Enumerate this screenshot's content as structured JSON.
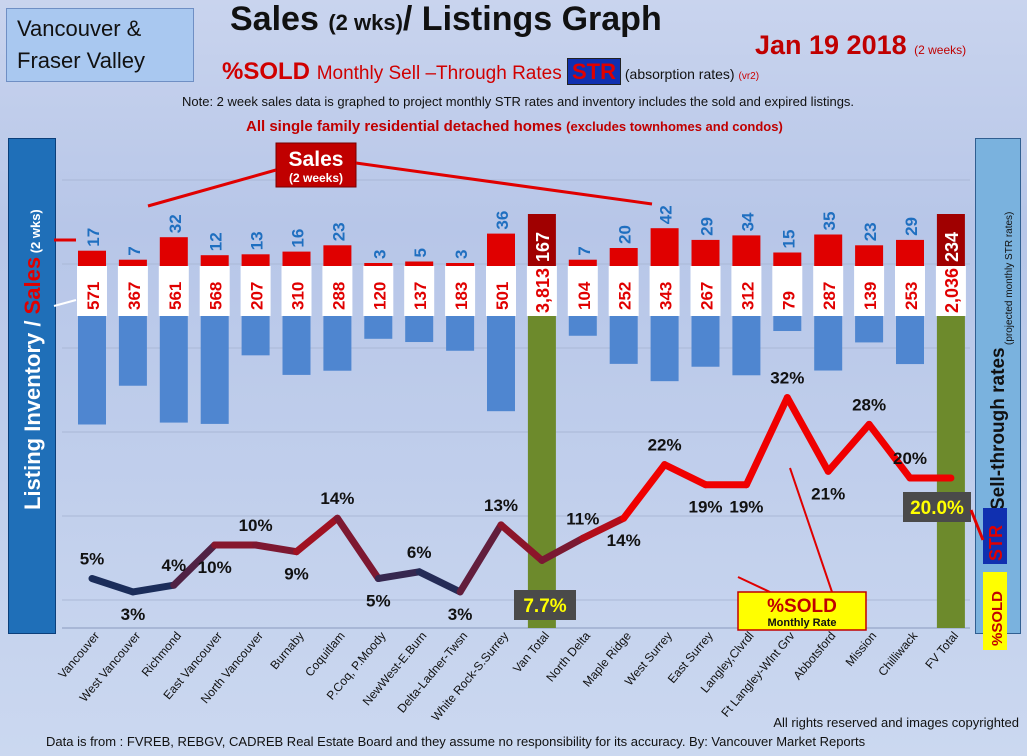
{
  "header": {
    "region_line1": "Vancouver &",
    "region_line2": "Fraser Valley",
    "title_a": "Sales ",
    "title_b": "(2 wks)",
    "title_c": "/ Listings Graph",
    "date_main": "Jan 19  2018 ",
    "date_sub": "(2 weeks)",
    "subtitle_a": "%SOLD ",
    "subtitle_b": "Monthly Sell –Through Rates ",
    "subtitle_str": "STR",
    "subtitle_c": " (absorption rates) ",
    "subtitle_d": "(vr2)",
    "note": "Note: 2 week sales data is graphed to project monthly STR rates and inventory includes the sold and expired listings.",
    "subnote_a": "All single family residential detached homes ",
    "subnote_b": "(excludes townhomes and condos)"
  },
  "left_axis": {
    "inventory": "Listing Inventory / ",
    "sales": "Sales",
    "wks": " (2  wks)"
  },
  "right_axis": {
    "label": "Sell-through rates",
    "sub": "(projected monthly STR rates)",
    "str": "STR",
    "sold": "%SOLD"
  },
  "callouts": {
    "sales_line1": "Sales",
    "sales_line2": "(2 weeks)",
    "sold_line1": "%SOLD",
    "sold_line2": "Monthly Rate",
    "van_total_badge": "7.7%",
    "fv_total_badge": "20.0%"
  },
  "footer": {
    "rights": "All rights reserved and  images copyrighted",
    "source": "Data is from : FVREB, REBGV, CADREB Real Estate Board and they assume  no responsibility for its accuracy.  By:  Vancouver Market Reports"
  },
  "colors": {
    "sales_bar": "#e00000",
    "inventory_bar": "#4f86d0",
    "total_bar": "#6d8a2c",
    "line_low": "#1b2d5a",
    "line_high": "#f00000"
  },
  "chart_data": {
    "type": "bar",
    "categories": [
      "Vancouver",
      "West Vancouver",
      "Richmond",
      "East Vancouver",
      "North Vancouver",
      "Burnaby",
      "Coquitlam",
      "P.Coq, P.Moody",
      "NewWest-E.Burn",
      "Delta-Ladner-Twsn",
      "White Rock-S.Surrey",
      "Van Total",
      "North Delta",
      "Maple Ridge",
      "West Surrey",
      "East Surrey",
      "Langley,Clvrdl",
      "Ft Langley-Wlnt Grv",
      "Abbotsford",
      "Mission",
      "Chilliwack",
      "FV Total"
    ],
    "series": [
      {
        "name": "Sales",
        "values": [
          17,
          7,
          32,
          12,
          13,
          16,
          23,
          3,
          5,
          3,
          36,
          167,
          7,
          20,
          42,
          29,
          34,
          15,
          35,
          23,
          29,
          234
        ]
      },
      {
        "name": "Listing Inventory",
        "values": [
          571,
          367,
          561,
          568,
          207,
          310,
          288,
          120,
          137,
          183,
          501,
          3813,
          104,
          252,
          343,
          267,
          312,
          79,
          287,
          139,
          253,
          2036
        ]
      },
      {
        "name": "%SOLD",
        "values": [
          5,
          3,
          4,
          10,
          10,
          9,
          14,
          5,
          6,
          3,
          13,
          7.7,
          11,
          14,
          22,
          19,
          19,
          32,
          21,
          28,
          20,
          20
        ]
      }
    ],
    "sold_labels": [
      "5%",
      "3%",
      "4%",
      "10%",
      "10%",
      "9%",
      "14%",
      "5%",
      "6%",
      "3%",
      "13%",
      "",
      "11%",
      "14%",
      "22%",
      "19%",
      "19%",
      "32%",
      "21%",
      "28%",
      "20%",
      ""
    ],
    "totals": [
      "Van Total",
      "FV Total"
    ]
  }
}
